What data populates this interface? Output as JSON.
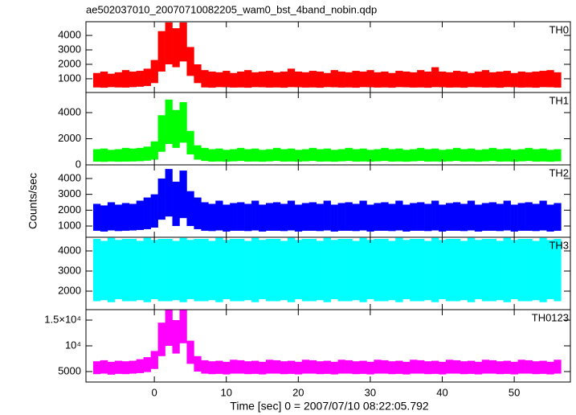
{
  "title": "ae502037010_20070710082205_wam0_bst_4band_nobin.qdp",
  "xlabel": "Time [sec] 0 = 2007/07/10 08:22:05.792",
  "ylabel": "Counts/sec",
  "chart_data": [
    {
      "type": "band",
      "label": "TH0",
      "color": "#ff0000",
      "x": [
        -8,
        -7,
        -6,
        -5,
        -4,
        -3,
        -2,
        -1,
        0,
        1,
        2,
        3,
        4,
        5,
        6,
        7,
        8,
        9,
        10,
        11,
        12,
        13,
        14,
        15,
        16,
        17,
        18,
        19,
        20,
        21,
        22,
        23,
        24,
        25,
        26,
        27,
        28,
        29,
        30,
        31,
        32,
        33,
        34,
        35,
        36,
        37,
        38,
        39,
        40,
        41,
        42,
        43,
        44,
        45,
        46,
        47,
        48,
        49,
        50,
        51,
        52,
        53,
        54,
        55,
        56
      ],
      "high": [
        1400,
        1500,
        1350,
        1450,
        1600,
        1500,
        1550,
        1700,
        2300,
        4300,
        4900,
        4500,
        4900,
        3200,
        2000,
        1600,
        1500,
        1450,
        1550,
        1400,
        1500,
        1600,
        1450,
        1500,
        1550,
        1450,
        1500,
        1700,
        1500,
        1450,
        1550,
        1500,
        1400,
        1600,
        1500,
        1450,
        1550,
        1500,
        1600,
        1450,
        1500,
        1400,
        1550,
        1500,
        1450,
        1600,
        1500,
        1800,
        1500,
        1450,
        1550,
        1500,
        1400,
        1500,
        1600,
        1450,
        1500,
        1550,
        1400,
        1500,
        1450,
        1500,
        1550,
        1600,
        1450
      ],
      "low": [
        400,
        380,
        420,
        400,
        390,
        420,
        450,
        500,
        700,
        1500,
        2000,
        1800,
        2200,
        1200,
        700,
        400,
        380,
        420,
        410,
        390,
        400,
        380,
        420,
        410,
        390,
        400,
        380,
        420,
        410,
        390,
        400,
        380,
        420,
        410,
        390,
        400,
        380,
        420,
        410,
        390,
        400,
        380,
        420,
        410,
        390,
        400,
        380,
        420,
        410,
        390,
        400,
        380,
        420,
        410,
        390,
        400,
        380,
        420,
        410,
        390,
        400,
        380,
        420,
        410,
        390
      ],
      "xlim": [
        -9.5,
        57.8
      ],
      "xticks": [
        0,
        10,
        20,
        30,
        40,
        50
      ],
      "ylim": [
        50,
        4950
      ],
      "yticks": [
        1000,
        2000,
        3000,
        4000
      ]
    },
    {
      "type": "band",
      "label": "TH1",
      "color": "#00ff00",
      "x": [
        -8,
        -7,
        -6,
        -5,
        -4,
        -3,
        -2,
        -1,
        0,
        1,
        2,
        3,
        4,
        5,
        6,
        7,
        8,
        9,
        10,
        11,
        12,
        13,
        14,
        15,
        16,
        17,
        18,
        19,
        20,
        21,
        22,
        23,
        24,
        25,
        26,
        27,
        28,
        29,
        30,
        31,
        32,
        33,
        34,
        35,
        36,
        37,
        38,
        39,
        40,
        41,
        42,
        43,
        44,
        45,
        46,
        47,
        48,
        49,
        50,
        51,
        52,
        53,
        54,
        55,
        56
      ],
      "high": [
        1200,
        1250,
        1150,
        1200,
        1300,
        1250,
        1300,
        1400,
        1800,
        3800,
        5000,
        4200,
        4800,
        2600,
        1500,
        1300,
        1200,
        1250,
        1150,
        1200,
        1300,
        1200,
        1250,
        1150,
        1200,
        1300,
        1200,
        1250,
        1150,
        1200,
        1300,
        1200,
        1250,
        1150,
        1200,
        1300,
        1200,
        1250,
        1150,
        1200,
        1300,
        1200,
        1250,
        1150,
        1200,
        1300,
        1200,
        1250,
        1150,
        1200,
        1300,
        1200,
        1250,
        1150,
        1200,
        1300,
        1200,
        1250,
        1150,
        1200,
        1300,
        1200,
        1250,
        1150,
        1200
      ],
      "low": [
        250,
        230,
        260,
        240,
        250,
        260,
        280,
        320,
        400,
        1000,
        1600,
        1300,
        1700,
        800,
        400,
        300,
        250,
        260,
        240,
        270,
        300,
        250,
        260,
        240,
        270,
        300,
        250,
        260,
        240,
        270,
        300,
        250,
        260,
        240,
        270,
        300,
        250,
        260,
        240,
        270,
        300,
        250,
        260,
        240,
        270,
        300,
        250,
        260,
        240,
        270,
        300,
        250,
        260,
        240,
        270,
        300,
        250,
        260,
        240,
        270,
        300,
        250,
        260,
        240,
        270
      ],
      "xlim": [
        -9.5,
        57.8
      ],
      "xticks": [
        0,
        10,
        20,
        30,
        40,
        50
      ],
      "ylim": [
        0,
        5540
      ],
      "yticks": [
        0,
        2000,
        4000
      ]
    },
    {
      "type": "band",
      "label": "TH2",
      "color": "#0000ff",
      "x": [
        -8,
        -7,
        -6,
        -5,
        -4,
        -3,
        -2,
        -1,
        0,
        1,
        2,
        3,
        4,
        5,
        6,
        7,
        8,
        9,
        10,
        11,
        12,
        13,
        14,
        15,
        16,
        17,
        18,
        19,
        20,
        21,
        22,
        23,
        24,
        25,
        26,
        27,
        28,
        29,
        30,
        31,
        32,
        33,
        34,
        35,
        36,
        37,
        38,
        39,
        40,
        41,
        42,
        43,
        44,
        45,
        46,
        47,
        48,
        49,
        50,
        51,
        52,
        53,
        54,
        55,
        56
      ],
      "high": [
        2400,
        2300,
        2500,
        2350,
        2450,
        2400,
        2600,
        2800,
        3000,
        4000,
        4600,
        3800,
        4500,
        3200,
        2800,
        2500,
        2400,
        2600,
        2350,
        2450,
        2500,
        2400,
        2600,
        2350,
        2450,
        2500,
        2400,
        2600,
        2350,
        2450,
        2500,
        2400,
        2600,
        2350,
        2450,
        2500,
        2400,
        2600,
        2350,
        2450,
        2500,
        2400,
        2600,
        2350,
        2450,
        2500,
        2400,
        2600,
        2350,
        2450,
        2500,
        2400,
        2600,
        2350,
        2450,
        2500,
        2400,
        2600,
        2350,
        2450,
        2500,
        2400,
        2600,
        2350,
        2450
      ],
      "low": [
        700,
        650,
        720,
        680,
        700,
        720,
        750,
        800,
        900,
        1400,
        1600,
        1000,
        1500,
        1000,
        800,
        700,
        680,
        720,
        650,
        700,
        700,
        680,
        720,
        650,
        700,
        700,
        680,
        720,
        650,
        700,
        700,
        680,
        720,
        650,
        700,
        700,
        680,
        720,
        650,
        700,
        700,
        680,
        720,
        650,
        700,
        700,
        680,
        720,
        650,
        700,
        700,
        680,
        720,
        650,
        700,
        700,
        680,
        720,
        650,
        700,
        700,
        680,
        720,
        650,
        700
      ],
      "xlim": [
        -9.5,
        57.8
      ],
      "xticks": [
        0,
        10,
        20,
        30,
        40,
        50
      ],
      "ylim": [
        290,
        4860
      ],
      "yticks": [
        1000,
        2000,
        3000,
        4000
      ]
    },
    {
      "type": "band",
      "label": "TH3",
      "color": "#00ffff",
      "x": [
        -8,
        -7,
        -6,
        -5,
        -4,
        -3,
        -2,
        -1,
        0,
        1,
        2,
        3,
        4,
        5,
        6,
        7,
        8,
        9,
        10,
        11,
        12,
        13,
        14,
        15,
        16,
        17,
        18,
        19,
        20,
        21,
        22,
        23,
        24,
        25,
        26,
        27,
        28,
        29,
        30,
        31,
        32,
        33,
        34,
        35,
        36,
        37,
        38,
        39,
        40,
        41,
        42,
        43,
        44,
        45,
        46,
        47,
        48,
        49,
        50,
        51,
        52,
        53,
        54,
        55,
        56
      ],
      "high": [
        4600,
        4500,
        4650,
        4550,
        4600,
        4600,
        4500,
        4650,
        4550,
        4600,
        4600,
        4500,
        4650,
        4550,
        4600,
        4600,
        4500,
        4650,
        4550,
        4600,
        4600,
        4500,
        4650,
        4550,
        4600,
        4600,
        4500,
        4650,
        4550,
        4600,
        4600,
        4500,
        4650,
        4550,
        4600,
        4600,
        4500,
        4650,
        4550,
        4600,
        4600,
        4500,
        4650,
        4550,
        4600,
        4600,
        4500,
        4650,
        4550,
        4600,
        4600,
        4500,
        4650,
        4550,
        4600,
        4600,
        4500,
        4650,
        4550,
        4600,
        4600,
        4500,
        4650,
        4550,
        4600
      ],
      "low": [
        1500,
        1550,
        1450,
        1600,
        1500,
        1500,
        1550,
        1450,
        1600,
        1500,
        1500,
        1550,
        1450,
        1600,
        1500,
        1500,
        1550,
        1450,
        1600,
        1500,
        1500,
        1550,
        1450,
        1600,
        1500,
        1500,
        1550,
        1450,
        1600,
        1500,
        1500,
        1550,
        1450,
        1600,
        1500,
        1500,
        1550,
        1450,
        1600,
        1500,
        1500,
        1550,
        1450,
        1600,
        1500,
        1500,
        1550,
        1450,
        1600,
        1500,
        1500,
        1550,
        1450,
        1600,
        1500,
        1500,
        1550,
        1450,
        1600,
        1500,
        1500,
        1550,
        1450,
        1600,
        1500
      ],
      "xlim": [
        -9.5,
        57.8
      ],
      "xticks": [
        0,
        10,
        20,
        30,
        40,
        50
      ],
      "ylim": [
        1080,
        4680
      ],
      "yticks": [
        2000,
        3000,
        4000
      ]
    },
    {
      "type": "band",
      "label": "TH0123",
      "color": "#ff00ff",
      "x": [
        -8,
        -7,
        -6,
        -5,
        -4,
        -3,
        -2,
        -1,
        0,
        1,
        2,
        3,
        4,
        5,
        6,
        7,
        8,
        9,
        10,
        11,
        12,
        13,
        14,
        15,
        16,
        17,
        18,
        19,
        20,
        21,
        22,
        23,
        24,
        25,
        26,
        27,
        28,
        29,
        30,
        31,
        32,
        33,
        34,
        35,
        36,
        37,
        38,
        39,
        40,
        41,
        42,
        43,
        44,
        45,
        46,
        47,
        48,
        49,
        50,
        51,
        52,
        53,
        54,
        55,
        56
      ],
      "high": [
        7000,
        7200,
        6900,
        7100,
        7000,
        7100,
        7400,
        7800,
        9000,
        14500,
        17000,
        15000,
        17000,
        11000,
        8000,
        7200,
        7000,
        7100,
        6900,
        7300,
        7200,
        7000,
        7100,
        6900,
        7300,
        7200,
        7000,
        7100,
        6900,
        7300,
        7200,
        7000,
        7100,
        6900,
        7300,
        7200,
        7000,
        7100,
        6900,
        7300,
        7200,
        7000,
        7100,
        6900,
        7300,
        7200,
        7000,
        7100,
        6900,
        7300,
        7200,
        7000,
        7100,
        6900,
        7300,
        7200,
        7000,
        7100,
        6900,
        7300,
        7200,
        7000,
        7100,
        6900,
        7300
      ],
      "low": [
        4500,
        4600,
        4400,
        4550,
        4500,
        4600,
        4700,
        4900,
        5500,
        8000,
        10000,
        8500,
        10500,
        6500,
        5000,
        4600,
        4500,
        4550,
        4450,
        4600,
        4600,
        4500,
        4550,
        4450,
        4600,
        4600,
        4500,
        4550,
        4450,
        4600,
        4600,
        4500,
        4550,
        4450,
        4600,
        4600,
        4500,
        4550,
        4450,
        4600,
        4600,
        4500,
        4550,
        4450,
        4600,
        4600,
        4500,
        4550,
        4450,
        4600,
        4600,
        4500,
        4550,
        4450,
        4600,
        4600,
        4500,
        4550,
        4450,
        4600,
        4600,
        4500,
        4550,
        4450,
        4600
      ],
      "xlim": [
        -9.5,
        57.8
      ],
      "xticks": [
        0,
        10,
        20,
        30,
        40,
        50
      ],
      "ylim": [
        2970,
        17030
      ],
      "yticks": [
        5000,
        {
          "value": 10000,
          "label": "10⁴"
        },
        {
          "value": 15000,
          "label": "1.5×10⁴"
        }
      ]
    }
  ]
}
